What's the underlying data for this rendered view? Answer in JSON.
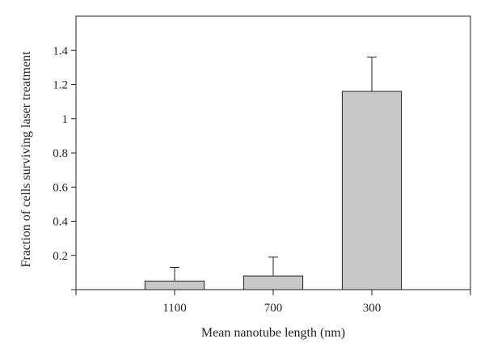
{
  "chart_data": {
    "type": "bar",
    "xlabel": "Mean nanotube length (nm)",
    "ylabel": "Fraction of cells surviving laser treatment",
    "categories": [
      "1100",
      "700",
      "300"
    ],
    "values": [
      0.05,
      0.08,
      1.16
    ],
    "error_upper": [
      0.13,
      0.19,
      1.36
    ],
    "ylim": [
      0,
      1.6
    ],
    "yticks": [
      0.2,
      0.4,
      0.6,
      0.8,
      1,
      1.2,
      1.4
    ],
    "ytick_labels": [
      "0.2",
      "0.4",
      "0.6",
      "0.8",
      "1",
      "1.2",
      "1.4"
    ],
    "grid": false,
    "legend": "none",
    "colors": {
      "bar_fill": "#c8c8c8",
      "stroke": "#231f20"
    }
  }
}
